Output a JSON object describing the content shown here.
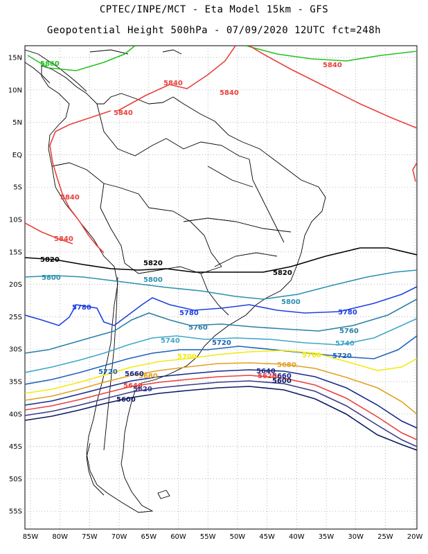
{
  "header": {
    "line1": "CPTEC/INPE/MCT -  Eta Model 15km - GFS",
    "line2": "Geopotential Height 500hPa - 07/09/2020 12UTC fct=248h"
  },
  "axes": {
    "lat_labels": [
      "15N",
      "10N",
      "5N",
      "EQ",
      "5S",
      "10S",
      "15S",
      "20S",
      "25S",
      "30S",
      "35S",
      "40S",
      "45S",
      "50S",
      "55S"
    ],
    "lon_labels": [
      "85W",
      "80W",
      "75W",
      "70W",
      "65W",
      "60W",
      "55W",
      "50W",
      "45W",
      "40W",
      "35W",
      "30W",
      "25W",
      "20W"
    ]
  },
  "contours": [
    {
      "level": "5860",
      "color": "#22c21f"
    },
    {
      "level": "5840",
      "color": "#e8413c"
    },
    {
      "level": "5820",
      "color": "#000000"
    },
    {
      "level": "5800",
      "color": "#2a8fb0"
    },
    {
      "level": "5780",
      "color": "#1d3fe0"
    },
    {
      "level": "5760",
      "color": "#2a7fa8"
    },
    {
      "level": "5740",
      "color": "#3fa6c8"
    },
    {
      "level": "5720",
      "color": "#1f62b8"
    },
    {
      "level": "5700",
      "color": "#f2ea0c"
    },
    {
      "level": "5680",
      "color": "#e0a020"
    },
    {
      "level": "5660",
      "color": "#162a8a"
    },
    {
      "level": "5640",
      "color": "#e8413c"
    },
    {
      "level": "5620",
      "color": "#3a3a8a"
    },
    {
      "level": "5600",
      "color": "#0a1a60"
    }
  ]
}
